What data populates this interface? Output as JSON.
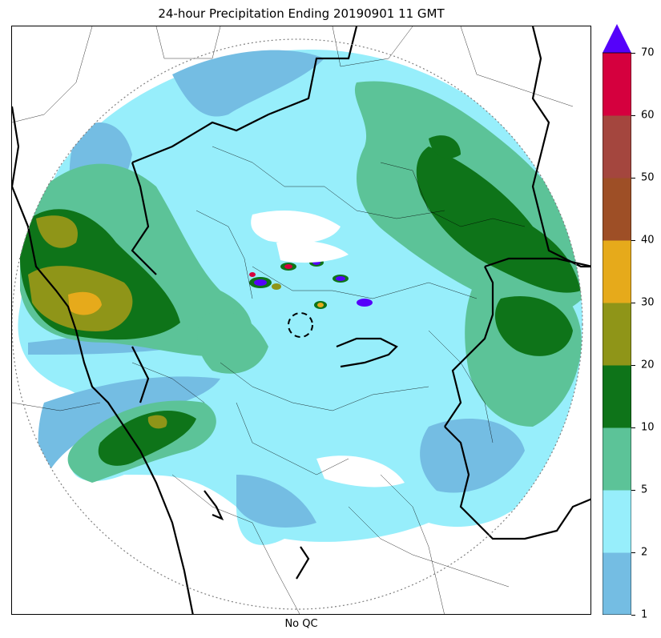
{
  "title": "24-hour Precipitation Ending 20190901 11 GMT",
  "subtitle": "No QC",
  "colorbar": {
    "ticks": [
      "1",
      "2",
      "5",
      "10",
      "20",
      "30",
      "40",
      "50",
      "60",
      "70"
    ],
    "colors": [
      "#74bde3",
      "#97eefb",
      "#5cc398",
      "#0e7419",
      "#8f9518",
      "#e6aa1b",
      "#9e4f26",
      "#a4463e",
      "#d5003e"
    ],
    "extend_max_color": "#5502fa",
    "extend": "max"
  },
  "map": {
    "background": "#ffffff",
    "range_ring_style": "dotted",
    "radar_site_marker": "dashed-circle"
  },
  "chart_data": {
    "type": "heatmap",
    "title": "24-hour Precipitation Ending 20190901 11 GMT",
    "subtitle": "No QC",
    "variable": "24-hour precipitation",
    "levels": [
      1,
      2,
      5,
      10,
      20,
      30,
      40,
      50,
      60,
      70
    ],
    "extend": "max",
    "dominant_category": "2-5",
    "max_observed_category": ">70"
  }
}
